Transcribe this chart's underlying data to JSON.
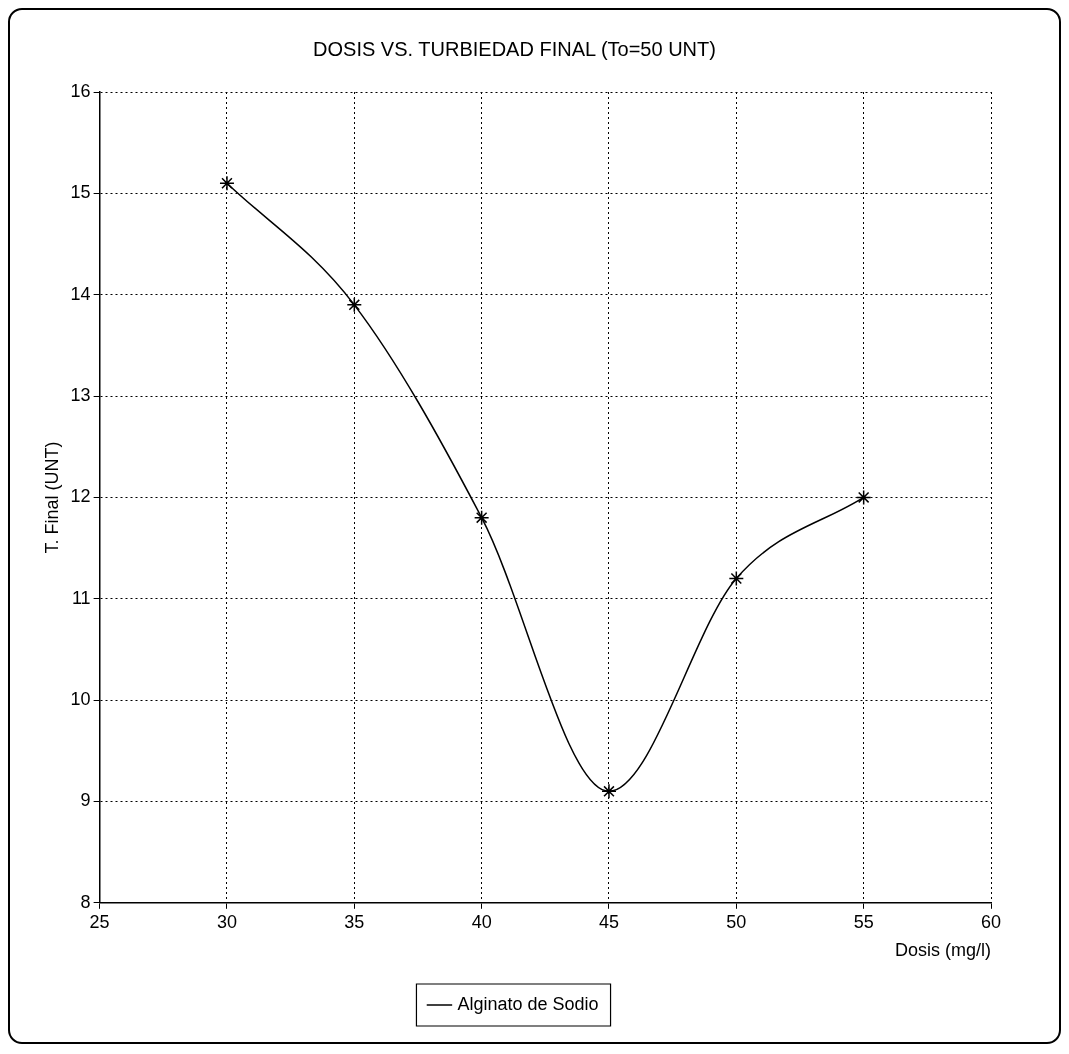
{
  "chart_data": {
    "type": "line",
    "title": "DOSIS VS. TURBIEDAD FINAL (To=50 UNT)",
    "xlabel": "Dosis (mg/l)",
    "ylabel": "T. Final (UNT)",
    "x": [
      30,
      35,
      40,
      45,
      50,
      55
    ],
    "series": [
      {
        "name": "Alginato de Sodio",
        "color": "#000000",
        "values": [
          15.1,
          13.9,
          11.8,
          9.1,
          11.2,
          12.0
        ]
      }
    ],
    "xlim": [
      25,
      60
    ],
    "xticks": [
      25,
      30,
      35,
      40,
      45,
      50,
      55,
      60
    ],
    "ylim": [
      8,
      16
    ],
    "yticks": [
      8,
      9,
      10,
      11,
      12,
      13,
      14,
      15,
      16
    ],
    "grid": true,
    "legend": "bottom",
    "marker": "cross",
    "line_style": "solid"
  }
}
